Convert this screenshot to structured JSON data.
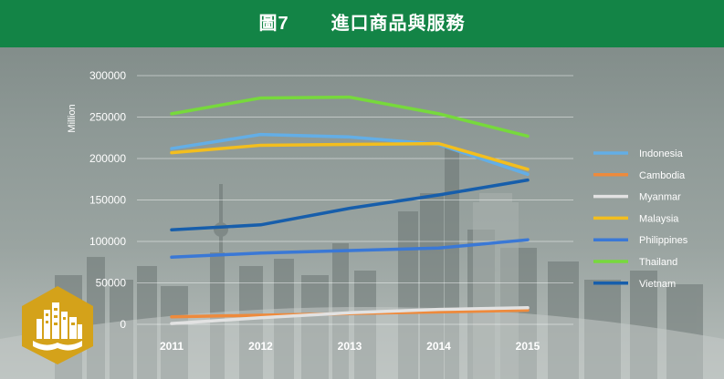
{
  "header": {
    "title": "圖7       進口商品與服務"
  },
  "colors": {
    "header_bg": "#138446",
    "logo_gold": "#d4a21a"
  },
  "logo": {
    "icon": "city-book-logo-icon"
  },
  "chart_data": {
    "type": "line",
    "title": "",
    "ylabel": "Million",
    "xlabel": "",
    "x": [
      "2011",
      "2012",
      "2013",
      "2014",
      "2015"
    ],
    "ylim": [
      0,
      300000
    ],
    "yticks": [
      "300000",
      "250000",
      "200000",
      "150000",
      "100000",
      "50000",
      "0"
    ],
    "grid": true,
    "legend_position": "right",
    "series": [
      {
        "name": "Indonesia",
        "color": "#63aee6",
        "values": [
          212000,
          229000,
          226000,
          217000,
          181000
        ]
      },
      {
        "name": "Cambodia",
        "color": "#ee8a3c",
        "values": [
          9000,
          11000,
          13000,
          15000,
          17000
        ]
      },
      {
        "name": "Myanmar",
        "color": "#e2e2e2",
        "values": [
          1000,
          8000,
          14000,
          18000,
          20000
        ]
      },
      {
        "name": "Malaysia",
        "color": "#f3be1e",
        "values": [
          207000,
          216000,
          217000,
          218000,
          187000
        ]
      },
      {
        "name": "Philippines",
        "color": "#3a78d6",
        "values": [
          81000,
          86000,
          89000,
          92000,
          102000
        ]
      },
      {
        "name": "Thailand",
        "color": "#77d93c",
        "values": [
          254000,
          273000,
          274000,
          254000,
          227000
        ]
      },
      {
        "name": "Vietnam",
        "color": "#175eab",
        "values": [
          114000,
          120000,
          140000,
          156000,
          174000
        ]
      }
    ]
  }
}
